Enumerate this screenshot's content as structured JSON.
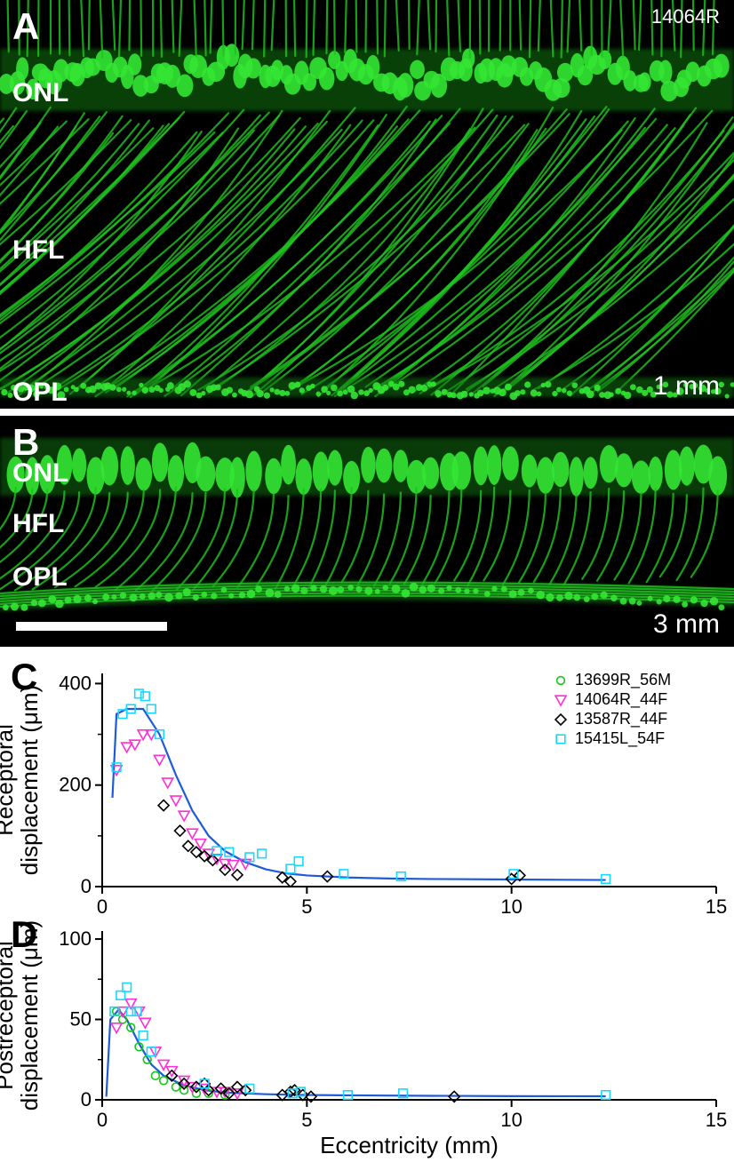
{
  "panelA": {
    "letter": "A",
    "sample_id": "14064R",
    "distance_label": "1 mm",
    "layer_labels": [
      "ONL",
      "HFL",
      "OPL"
    ],
    "layer_label_positions_y": [
      100,
      275,
      440
    ],
    "bg_color": "#000000",
    "signal_color": "#1ec21e"
  },
  "panelB": {
    "letter": "B",
    "distance_label": "3 mm",
    "layer_labels": [
      "ONL",
      "HFL",
      "OPL"
    ],
    "layer_label_positions_y": [
      60,
      120,
      180
    ],
    "bg_color": "#000000",
    "signal_color": "#1ec21e",
    "scalebar_present": true
  },
  "chartC": {
    "letter": "C",
    "type": "scatter",
    "ylabel": "Receptoral\ndisplacement (μm)",
    "xlim": [
      0,
      15
    ],
    "ylim": [
      0,
      420
    ],
    "xticks": [
      0,
      5,
      10,
      15
    ],
    "yticks": [
      0,
      200,
      400
    ],
    "ytick_minor": [
      100,
      300
    ],
    "plot_bg": "#ffffff",
    "axis_color": "#000000",
    "fit_line_color": "#1e5bd8",
    "fit_line_width": 2.2,
    "fit_curve": [
      [
        0.25,
        175
      ],
      [
        0.35,
        340
      ],
      [
        0.6,
        350
      ],
      [
        1.0,
        350
      ],
      [
        1.4,
        300
      ],
      [
        1.8,
        220
      ],
      [
        2.2,
        150
      ],
      [
        2.6,
        100
      ],
      [
        3.0,
        70
      ],
      [
        3.5,
        48
      ],
      [
        4.0,
        34
      ],
      [
        4.5,
        26
      ],
      [
        5.0,
        22
      ],
      [
        6.0,
        18
      ],
      [
        7.0,
        16
      ],
      [
        8.0,
        15
      ],
      [
        10.0,
        14
      ],
      [
        12.3,
        13
      ]
    ],
    "legend": [
      {
        "label": "13699R_56M",
        "marker": "circle",
        "color": "#17c41a"
      },
      {
        "label": "14064R_44F",
        "marker": "triangle-down",
        "color": "#ff2fd3"
      },
      {
        "label": "13587R_44F",
        "marker": "diamond",
        "color": "#000000"
      },
      {
        "label": "15415L_54F",
        "marker": "square",
        "color": "#19d8ff"
      }
    ],
    "series": {
      "13699R_56M": {
        "marker": "circle",
        "color": "#17c41a",
        "points": []
      },
      "14064R_44F": {
        "marker": "triangle-down",
        "color": "#ff2fd3",
        "points": [
          [
            0.35,
            230
          ],
          [
            0.6,
            275
          ],
          [
            0.8,
            280
          ],
          [
            1.0,
            300
          ],
          [
            1.2,
            300
          ],
          [
            1.4,
            250
          ],
          [
            1.6,
            205
          ],
          [
            1.8,
            170
          ],
          [
            2.0,
            140
          ],
          [
            2.2,
            105
          ],
          [
            2.4,
            85
          ],
          [
            2.6,
            65
          ],
          [
            2.8,
            55
          ],
          [
            3.0,
            45
          ],
          [
            3.2,
            43
          ],
          [
            3.5,
            45
          ]
        ]
      },
      "13587R_44F": {
        "marker": "diamond",
        "color": "#000000",
        "points": [
          [
            1.5,
            160
          ],
          [
            1.9,
            110
          ],
          [
            2.1,
            80
          ],
          [
            2.3,
            68
          ],
          [
            2.5,
            60
          ],
          [
            2.7,
            52
          ],
          [
            3.0,
            33
          ],
          [
            3.3,
            23
          ],
          [
            4.4,
            18
          ],
          [
            4.6,
            10
          ],
          [
            5.5,
            20
          ],
          [
            10.0,
            15
          ],
          [
            10.2,
            22
          ]
        ]
      },
      "15415L_54F": {
        "marker": "square",
        "color": "#19d8ff",
        "points": [
          [
            0.35,
            235
          ],
          [
            0.5,
            340
          ],
          [
            0.7,
            350
          ],
          [
            0.9,
            380
          ],
          [
            1.05,
            375
          ],
          [
            1.2,
            350
          ],
          [
            1.4,
            300
          ],
          [
            2.8,
            70
          ],
          [
            3.1,
            68
          ],
          [
            3.6,
            58
          ],
          [
            3.9,
            65
          ],
          [
            4.6,
            35
          ],
          [
            4.8,
            50
          ],
          [
            5.9,
            25
          ],
          [
            7.3,
            20
          ],
          [
            10.05,
            25
          ],
          [
            12.3,
            15
          ]
        ]
      }
    }
  },
  "chartD": {
    "letter": "D",
    "type": "scatter",
    "xlabel": "Eccentricity (mm)",
    "ylabel": "Postreceptoral\ndisplacement (μm)",
    "xlim": [
      0,
      15
    ],
    "ylim": [
      0,
      105
    ],
    "xticks": [
      0,
      5,
      10,
      15
    ],
    "yticks": [
      0,
      50,
      100
    ],
    "ytick_minor": [
      25,
      75
    ],
    "plot_bg": "#ffffff",
    "axis_color": "#000000",
    "fit_line_color": "#1e5bd8",
    "fit_line_width": 2.2,
    "fit_curve": [
      [
        0.1,
        2
      ],
      [
        0.2,
        50
      ],
      [
        0.4,
        56
      ],
      [
        0.6,
        50
      ],
      [
        0.9,
        35
      ],
      [
        1.2,
        22
      ],
      [
        1.5,
        15
      ],
      [
        2.0,
        9
      ],
      [
        2.5,
        6
      ],
      [
        3.0,
        4.5
      ],
      [
        4.0,
        3.5
      ],
      [
        5.0,
        3
      ],
      [
        6.0,
        2.8
      ],
      [
        8.0,
        2.5
      ],
      [
        10.0,
        2.3
      ],
      [
        12.3,
        2.2
      ]
    ],
    "series": {
      "13699R_56M": {
        "marker": "circle",
        "color": "#17c41a",
        "points": [
          [
            0.35,
            55
          ],
          [
            0.5,
            50
          ],
          [
            0.7,
            45
          ],
          [
            0.9,
            33
          ],
          [
            1.1,
            25
          ],
          [
            1.3,
            15
          ],
          [
            1.5,
            12
          ],
          [
            1.8,
            8
          ],
          [
            2.0,
            6
          ],
          [
            2.3,
            4
          ],
          [
            2.6,
            4
          ],
          [
            3.0,
            3
          ]
        ]
      },
      "14064R_44F": {
        "marker": "triangle-down",
        "color": "#ff2fd3",
        "points": [
          [
            0.35,
            45
          ],
          [
            0.5,
            55
          ],
          [
            0.7,
            60
          ],
          [
            0.9,
            55
          ],
          [
            1.05,
            48
          ],
          [
            1.3,
            30
          ],
          [
            1.5,
            22
          ],
          [
            1.7,
            18
          ],
          [
            2.0,
            12
          ],
          [
            2.2,
            8
          ],
          [
            2.5,
            7
          ],
          [
            2.8,
            5
          ],
          [
            3.0,
            5
          ],
          [
            3.3,
            4
          ]
        ]
      },
      "13587R_44F": {
        "marker": "diamond",
        "color": "#000000",
        "points": [
          [
            1.7,
            15
          ],
          [
            2.0,
            10
          ],
          [
            2.3,
            8
          ],
          [
            2.5,
            10
          ],
          [
            2.6,
            6
          ],
          [
            2.9,
            7
          ],
          [
            3.1,
            4
          ],
          [
            3.3,
            8
          ],
          [
            3.5,
            6
          ],
          [
            4.4,
            3
          ],
          [
            4.6,
            5
          ],
          [
            4.7,
            6
          ],
          [
            4.9,
            3
          ],
          [
            5.1,
            2
          ],
          [
            8.6,
            2
          ]
        ]
      },
      "15415L_54F": {
        "marker": "square",
        "color": "#19d8ff",
        "points": [
          [
            0.3,
            55
          ],
          [
            0.45,
            65
          ],
          [
            0.6,
            70
          ],
          [
            0.7,
            55
          ],
          [
            0.85,
            55
          ],
          [
            1.0,
            40
          ],
          [
            1.2,
            30
          ],
          [
            2.5,
            10
          ],
          [
            3.6,
            7
          ],
          [
            4.65,
            4
          ],
          [
            4.85,
            5
          ],
          [
            6.0,
            3
          ],
          [
            7.35,
            4
          ],
          [
            12.3,
            3
          ]
        ]
      }
    }
  },
  "common": {
    "marker_size": 8,
    "marker_stroke_width": 1.6,
    "font_family": "Arial",
    "label_fontsize": 26,
    "tick_fontsize": 22,
    "legend_fontsize": 18
  }
}
